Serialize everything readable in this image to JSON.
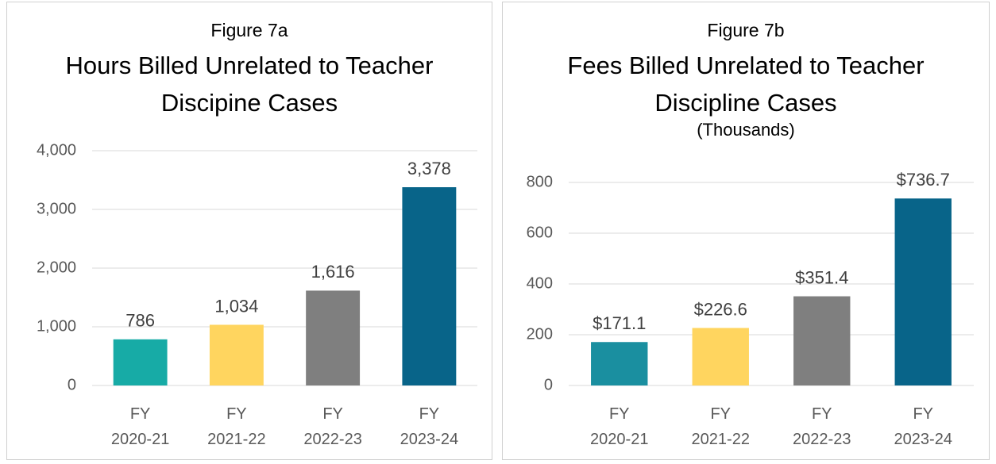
{
  "chart_data": [
    {
      "type": "bar",
      "subtitle": "Figure 7a",
      "title": "Hours Billed Unrelated to Teacher Discipine Cases",
      "categories": [
        "FY 2020-21",
        "FY 2021-22",
        "FY 2022-23",
        "FY 2023-24"
      ],
      "values": [
        786,
        1034,
        1616,
        3378
      ],
      "value_labels": [
        "786",
        "1,034",
        "1,616",
        "3,378"
      ],
      "colors": [
        "#17aba6",
        "#ffd55f",
        "#7f7f7f",
        "#086489"
      ],
      "ylim": [
        0,
        4000
      ],
      "yticks": [
        0,
        {
          "value": 1000,
          "label": "1,000"
        },
        {
          "value": 2000,
          "label": "2,000"
        },
        {
          "value": 3000,
          "label": "3,000"
        },
        {
          "value": 4000,
          "label": "4,000"
        }
      ],
      "grid": true
    },
    {
      "type": "bar",
      "subtitle": "Figure 7b",
      "title": "Fees Billed Unrelated to Teacher Discipline Cases",
      "note": "(Thousands)",
      "categories": [
        "FY 2020-21",
        "FY 2021-22",
        "FY 2022-23",
        "FY 2023-24"
      ],
      "values": [
        171.1,
        226.6,
        351.4,
        736.7
      ],
      "value_labels": [
        "$171.1",
        "$226.6",
        "$351.4",
        "$736.7"
      ],
      "colors": [
        "#1a8fa0",
        "#ffd55f",
        "#7f7f7f",
        "#086489"
      ],
      "ylim": [
        0,
        800
      ],
      "yticks": [
        0,
        200,
        400,
        600,
        800
      ],
      "grid": true
    }
  ]
}
